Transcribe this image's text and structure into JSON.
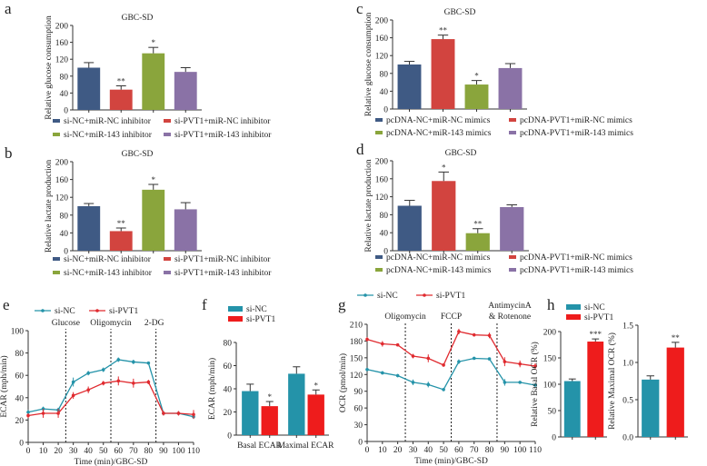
{
  "colors": {
    "navy": "#3f5a84",
    "red": "#d2443f",
    "green": "#8aa53c",
    "purple": "#8a72a6",
    "teal": "#2493a9",
    "bright_red": "#ee1c1c"
  },
  "chart_data": [
    {
      "panel": "a",
      "type": "bar",
      "title": "GBC-SD",
      "ylabel": "Relative glucose consumption",
      "ylim": [
        0,
        200
      ],
      "yticks": [
        0,
        40,
        80,
        120,
        160,
        200
      ],
      "categories": [
        "si-NC+miR-NC inhibitor",
        "si-PVT1+miR-NC inhibitor",
        "si-NC+miR-143 inhibitor",
        "si-PVT1+miR-143 inhibitor"
      ],
      "values": [
        100,
        48,
        134,
        90
      ],
      "errors": [
        12,
        9,
        14,
        10
      ],
      "significance": [
        "",
        "**",
        "*",
        ""
      ],
      "colors": [
        "#3f5a84",
        "#d2443f",
        "#8aa53c",
        "#8a72a6"
      ],
      "legend": "bottom"
    },
    {
      "panel": "b",
      "type": "bar",
      "title": "GBC-SD",
      "ylabel": "Relative lactate production",
      "ylim": [
        0,
        200
      ],
      "yticks": [
        0,
        40,
        80,
        120,
        160,
        200
      ],
      "categories": [
        "si-NC+miR-NC inhibitor",
        "si-PVT1+miR-NC inhibitor",
        "si-NC+miR-143 inhibitor",
        "si-PVT1+miR-143 inhibitor"
      ],
      "values": [
        100,
        44,
        137,
        93
      ],
      "errors": [
        6,
        7,
        12,
        15
      ],
      "significance": [
        "",
        "**",
        "*",
        ""
      ],
      "colors": [
        "#3f5a84",
        "#d2443f",
        "#8aa53c",
        "#8a72a6"
      ],
      "legend": "bottom"
    },
    {
      "panel": "c",
      "type": "bar",
      "title": "GBC-SD",
      "ylabel": "Relative glucose consumption",
      "ylim": [
        0,
        200
      ],
      "yticks": [
        0,
        40,
        80,
        120,
        160,
        200
      ],
      "categories": [
        "pcDNA-NC+miR-NC mimics",
        "pcDNA-PVT1+miR-NC mimics",
        "pcDNA-NC+miR-143 mimics",
        "pcDNA-PVT1+miR-143 mimics"
      ],
      "values": [
        100,
        157,
        55,
        92
      ],
      "errors": [
        7,
        9,
        9,
        10
      ],
      "significance": [
        "",
        "**",
        "*",
        ""
      ],
      "colors": [
        "#3f5a84",
        "#d2443f",
        "#8aa53c",
        "#8a72a6"
      ],
      "legend": "bottom"
    },
    {
      "panel": "d",
      "type": "bar",
      "title": "GBC-SD",
      "ylabel": "Relative lactate production",
      "ylim": [
        0,
        200
      ],
      "yticks": [
        0,
        40,
        80,
        120,
        160,
        200
      ],
      "categories": [
        "pcDNA-NC+miR-NC mimics",
        "pcDNA-PVT1+miR-NC mimics",
        "pcDNA-NC+miR-143 mimics",
        "pcDNA-PVT1+miR-143 mimics"
      ],
      "values": [
        100,
        155,
        39,
        97
      ],
      "errors": [
        12,
        20,
        10,
        5
      ],
      "significance": [
        "",
        "*",
        "**",
        ""
      ],
      "colors": [
        "#3f5a84",
        "#d2443f",
        "#8aa53c",
        "#8a72a6"
      ],
      "legend": "bottom"
    },
    {
      "panel": "e",
      "type": "line",
      "xlabel": "Time (min)/GBC-SD",
      "ylabel": "ECAR (mph/min)",
      "xlim": [
        0,
        110
      ],
      "ylim": [
        0,
        100
      ],
      "xticks": [
        0,
        10,
        20,
        30,
        40,
        50,
        60,
        70,
        80,
        90,
        100,
        110
      ],
      "yticks": [
        0,
        20,
        40,
        60,
        80,
        100
      ],
      "x": [
        0,
        10,
        20,
        30,
        40,
        50,
        60,
        70,
        80,
        90,
        100,
        110
      ],
      "series": [
        {
          "name": "si-NC",
          "color": "#2493a9",
          "values": [
            27,
            30,
            29,
            54,
            62,
            65,
            74,
            72,
            71,
            26,
            26,
            23
          ],
          "errors": [
            2,
            2,
            2,
            4,
            2,
            2,
            2,
            2,
            1,
            2,
            2,
            2
          ]
        },
        {
          "name": "si-PVT1",
          "color": "#e02a2f",
          "values": [
            24,
            26,
            26,
            42,
            47,
            53,
            55,
            53,
            54,
            26,
            26,
            25
          ],
          "errors": [
            2,
            4,
            4,
            3,
            3,
            2,
            4,
            4,
            2,
            2,
            2,
            4
          ]
        }
      ],
      "injections": [
        {
          "x": 25,
          "label": "Glucose"
        },
        {
          "x": 55,
          "label": "Oligomycin"
        },
        {
          "x": 85,
          "label": "2-DG"
        }
      ],
      "legend": "top"
    },
    {
      "panel": "f",
      "type": "bar",
      "ylabel": "ECAR (mph/min)",
      "ylim": [
        0,
        80
      ],
      "yticks": [
        0,
        20,
        40,
        60,
        80
      ],
      "categories": [
        "Basal ECAR",
        "Maximal ECAR"
      ],
      "series_names": [
        "si-NC",
        "si-PVT1"
      ],
      "values": [
        [
          38,
          25
        ],
        [
          53,
          35
        ]
      ],
      "errors": [
        [
          6,
          4
        ],
        [
          6,
          4
        ]
      ],
      "significance": [
        [
          "",
          "*"
        ],
        [
          "",
          "*"
        ]
      ],
      "colors": [
        "#2493a9",
        "#ee1c1c"
      ],
      "legend": "top-left"
    },
    {
      "panel": "g",
      "type": "line",
      "xlabel": "Time (min)/GBC-SD",
      "ylabel": "OCR (pmol/min)",
      "xlim": [
        0,
        110
      ],
      "ylim": [
        0,
        210
      ],
      "xticks": [
        0,
        10,
        20,
        30,
        40,
        50,
        60,
        70,
        80,
        90,
        100,
        110
      ],
      "yticks": [
        0,
        30,
        60,
        90,
        120,
        150,
        180,
        210
      ],
      "x": [
        0,
        10,
        20,
        30,
        40,
        50,
        60,
        70,
        80,
        90,
        100,
        110
      ],
      "series": [
        {
          "name": "si-NC",
          "color": "#2493a9",
          "values": [
            129,
            123,
            118,
            106,
            102,
            93,
            143,
            149,
            148,
            106,
            106,
            101
          ],
          "errors": [
            3,
            3,
            3,
            5,
            5,
            3,
            4,
            2,
            2,
            6,
            2,
            2
          ]
        },
        {
          "name": "si-PVT1",
          "color": "#e02a2f",
          "values": [
            183,
            175,
            173,
            153,
            149,
            137,
            197,
            191,
            190,
            143,
            139,
            135
          ],
          "errors": [
            4,
            5,
            2,
            4,
            7,
            3,
            5,
            3,
            5,
            8,
            6,
            5
          ]
        }
      ],
      "injections": [
        {
          "x": 25,
          "label": "Oligomycin"
        },
        {
          "x": 55,
          "label": "FCCP"
        },
        {
          "x": 85,
          "label": "AntimycinA & Rotenone"
        }
      ],
      "legend": "top"
    },
    {
      "panel": "h",
      "type": "bar",
      "ylabel": "Relative Basal OCR (%)",
      "ylim": [
        0,
        200
      ],
      "yticks": [
        0,
        50,
        100,
        150,
        200
      ],
      "categories": [
        "si-NC",
        "si-PVT1"
      ],
      "values": [
        106,
        181
      ],
      "errors": [
        4,
        5
      ],
      "significance": [
        "",
        "***"
      ],
      "colors": [
        "#2493a9",
        "#ee1c1c"
      ],
      "legend": "top"
    },
    {
      "panel": "h2",
      "type": "bar",
      "ylabel": "Relative Maximal OCR (%)",
      "ylim": [
        0,
        1.5
      ],
      "yticks": [
        "0.0",
        "0.5",
        "1.0",
        "1.5"
      ],
      "categories": [
        "si-NC",
        "si-PVT1"
      ],
      "values": [
        0.77,
        1.2
      ],
      "errors": [
        0.05,
        0.07
      ],
      "significance": [
        "",
        "**"
      ],
      "colors": [
        "#2493a9",
        "#ee1c1c"
      ]
    }
  ]
}
